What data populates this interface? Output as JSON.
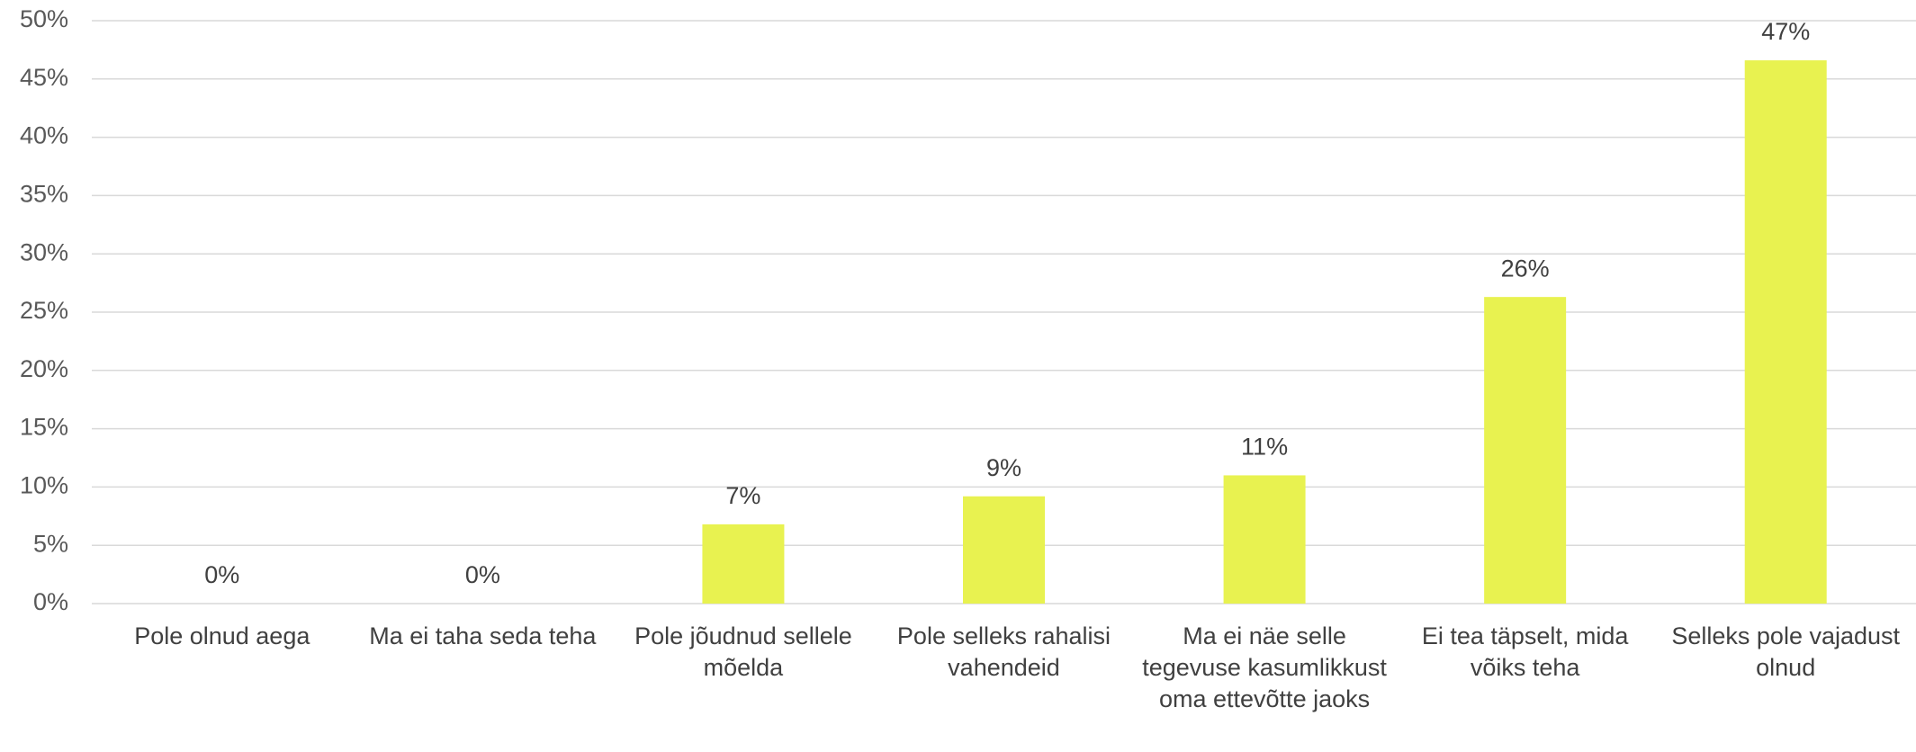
{
  "chart_data": {
    "type": "bar",
    "categories": [
      "Pole olnud aega",
      "Ma ei taha seda teha",
      "Pole jõudnud sellele mõelda",
      "Pole selleks rahalisi vahendeid",
      "Ma ei näe selle tegevuse kasumlikkust oma ettevõtte jaoks",
      "Ei tea täpselt, mida võiks teha",
      "Selleks pole vajadust olnud"
    ],
    "values": [
      0,
      0,
      6.8,
      9.2,
      11,
      26.3,
      46.6
    ],
    "value_labels": [
      "0%",
      "0%",
      "7%",
      "9%",
      "11%",
      "26%",
      "47%"
    ],
    "color": "#e8f250",
    "ylim": [
      0,
      50
    ],
    "yticks": [
      {
        "value": 0,
        "label": "0%"
      },
      {
        "value": 5,
        "label": "5%"
      },
      {
        "value": 10,
        "label": "10%"
      },
      {
        "value": 15,
        "label": "15%"
      },
      {
        "value": 20,
        "label": "20%"
      },
      {
        "value": 25,
        "label": "25%"
      },
      {
        "value": 30,
        "label": "30%"
      },
      {
        "value": 35,
        "label": "35%"
      },
      {
        "value": 40,
        "label": "40%"
      },
      {
        "value": 45,
        "label": "45%"
      },
      {
        "value": 50,
        "label": "50%"
      }
    ],
    "grid": true
  }
}
